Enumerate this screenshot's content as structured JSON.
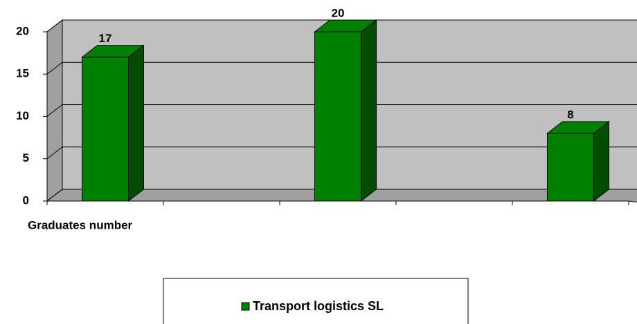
{
  "chart_data": {
    "type": "bar3d",
    "x_label": "Graduates number",
    "categories": [
      null,
      null,
      null,
      null,
      null
    ],
    "series": [
      {
        "name": "Transport logistics SL",
        "color": "#008000",
        "values": [
          17,
          null,
          20,
          null,
          8
        ]
      }
    ],
    "ylim": [
      0,
      20
    ],
    "yticks": [
      0,
      5,
      10,
      15,
      20
    ],
    "grid": true,
    "legend": "bottom"
  }
}
